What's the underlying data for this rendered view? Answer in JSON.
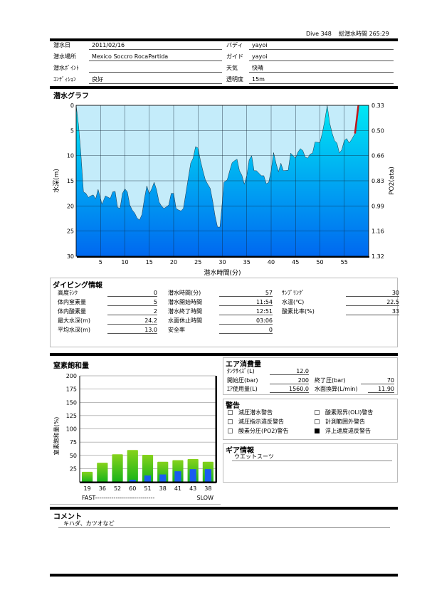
{
  "header": {
    "dive_label": "Dive 348",
    "total_label": "総潜水時間",
    "total_value": "265:29"
  },
  "info": {
    "left": [
      {
        "label": "潜水日",
        "value": "2011/02/16"
      },
      {
        "label": "潜水場所",
        "value": "Mexico Soccro  RocaPartida"
      },
      {
        "label": "潜水ﾎﾟｲﾝﾄ",
        "value": ""
      },
      {
        "label": "ｺﾝﾃﾞｨｼｮﾝ",
        "value": "良好"
      }
    ],
    "right": [
      {
        "label": "バディ",
        "value": "yayoi"
      },
      {
        "label": "ガイド",
        "value": "yayoi"
      },
      {
        "label": "天気",
        "value": "快晴"
      },
      {
        "label": "透明度",
        "value": "15m"
      }
    ]
  },
  "graph": {
    "title": "潜水グラフ"
  },
  "chart_data": [
    {
      "type": "area",
      "xlabel": "潜水時間(分)",
      "ylabel": "水深(m)",
      "y2label": "PO2(ata)",
      "xlim": [
        0,
        60
      ],
      "ylim": [
        0,
        30
      ],
      "y_inverted": true,
      "xticks": [
        5,
        10,
        15,
        20,
        25,
        30,
        35,
        40,
        45,
        50,
        55
      ],
      "yticks": [
        0,
        5,
        10,
        15,
        20,
        25,
        30
      ],
      "y2ticks": [
        "0.33",
        "0.50",
        "0.66",
        "0.83",
        "0.99",
        "1.16",
        "1.32"
      ],
      "grid": true,
      "colors": {
        "sky": "#c4ecfa",
        "fill_top": "#00e8f4",
        "fill_bottom": "#0068f0",
        "ascent_warning": "#c0161b"
      },
      "depth": [
        [
          0,
          0
        ],
        [
          0.5,
          4
        ],
        [
          1,
          10
        ],
        [
          1.5,
          17.2
        ],
        [
          2,
          17.5
        ],
        [
          2.5,
          18.3
        ],
        [
          3,
          18
        ],
        [
          3.5,
          17.8
        ],
        [
          4,
          18.6
        ],
        [
          4.5,
          16.7
        ],
        [
          5,
          18.5
        ],
        [
          5.3,
          19.7
        ],
        [
          6,
          18
        ],
        [
          7,
          18.5
        ],
        [
          7.5,
          17.2
        ],
        [
          8,
          17.1
        ],
        [
          8.5,
          20.3
        ],
        [
          9,
          20.5
        ],
        [
          9.5,
          17.5
        ],
        [
          10,
          16.6
        ],
        [
          10.5,
          17.2
        ],
        [
          11,
          19.8
        ],
        [
          11.5,
          20.8
        ],
        [
          12,
          21.4
        ],
        [
          12.5,
          22.4
        ],
        [
          13,
          22.8
        ],
        [
          13.5,
          21.7
        ],
        [
          14,
          18.6
        ],
        [
          14.5,
          16
        ],
        [
          15,
          17.6
        ],
        [
          15.5,
          16.6
        ],
        [
          16,
          15.3
        ],
        [
          16.5,
          16.8
        ],
        [
          17,
          19.2
        ],
        [
          17.5,
          20
        ],
        [
          18,
          20.5
        ],
        [
          18.5,
          20.2
        ],
        [
          19,
          19.8
        ],
        [
          19.5,
          17.5
        ],
        [
          20,
          17.5
        ],
        [
          20.5,
          20.5
        ],
        [
          21,
          20.8
        ],
        [
          21.5,
          21
        ],
        [
          22,
          20.5
        ],
        [
          22.5,
          17.5
        ],
        [
          23,
          14.5
        ],
        [
          23.5,
          11.5
        ],
        [
          24,
          10.5
        ],
        [
          24.5,
          8.2
        ],
        [
          25,
          8.5
        ],
        [
          25.5,
          11
        ],
        [
          26,
          13
        ],
        [
          26.5,
          14.8
        ],
        [
          27,
          15.7
        ],
        [
          27.5,
          16.5
        ],
        [
          28,
          19
        ],
        [
          28.5,
          22
        ],
        [
          29,
          24.2
        ],
        [
          29.5,
          24.2
        ],
        [
          30,
          19
        ],
        [
          30.3,
          15.3
        ],
        [
          31,
          14.8
        ],
        [
          31.5,
          13
        ],
        [
          32,
          11.4
        ],
        [
          32.5,
          11
        ],
        [
          33,
          10.7
        ],
        [
          33.5,
          13
        ],
        [
          34,
          13.9
        ],
        [
          34.5,
          15.7
        ],
        [
          35,
          14
        ],
        [
          35.5,
          10.8
        ],
        [
          36,
          10
        ],
        [
          36.5,
          13
        ],
        [
          37,
          13
        ],
        [
          37.5,
          13.5
        ],
        [
          38,
          14
        ],
        [
          38.5,
          14
        ],
        [
          39,
          15.6
        ],
        [
          39.5,
          15.3
        ],
        [
          40,
          13
        ],
        [
          40.5,
          9.4
        ],
        [
          41,
          11.5
        ],
        [
          41.5,
          13.2
        ],
        [
          42,
          11.5
        ],
        [
          42.5,
          13
        ],
        [
          43.5,
          12.9
        ],
        [
          44,
          9.5
        ],
        [
          44.5,
          10
        ],
        [
          45,
          10.5
        ],
        [
          45.5,
          9.3
        ],
        [
          46,
          8.6
        ],
        [
          46.5,
          9
        ],
        [
          47,
          10.3
        ],
        [
          47.5,
          10.5
        ],
        [
          48,
          9.7
        ],
        [
          48.5,
          9.5
        ],
        [
          49,
          7.3
        ],
        [
          50,
          7.4
        ],
        [
          50.5,
          5.5
        ],
        [
          51,
          3
        ],
        [
          51.5,
          0
        ],
        [
          52,
          3.5
        ],
        [
          52.5,
          5.5
        ],
        [
          53,
          7
        ],
        [
          53.5,
          7.5
        ],
        [
          54,
          9.5
        ],
        [
          54.5,
          8.8
        ],
        [
          55,
          7
        ],
        [
          55.5,
          6.6
        ],
        [
          56,
          7.5
        ],
        [
          56.5,
          6.8
        ],
        [
          57.2,
          5.6
        ],
        [
          57.9,
          0
        ]
      ],
      "ascent_warning_segment": [
        [
          57.2,
          5.6
        ],
        [
          57.9,
          0
        ]
      ]
    },
    {
      "type": "bar",
      "title": "窒素飽和量",
      "ylabel": "窒素飽和量(%)",
      "ylim": [
        0,
        200
      ],
      "yticks": [
        25,
        50,
        75,
        100,
        125,
        150,
        175,
        200
      ],
      "categories": [
        "19",
        "36",
        "52",
        "60",
        "51",
        "38",
        "41",
        "43",
        "38"
      ],
      "series": [
        {
          "values": [
            19,
            36,
            52,
            60,
            51,
            38,
            41,
            43,
            38
          ],
          "color": "#3cc21a"
        },
        {
          "values": [
            0,
            0,
            0,
            4,
            12,
            14,
            20,
            24,
            24
          ],
          "color": "#1a5cf0"
        }
      ],
      "xnote_left": "FAST",
      "xnote_right": "SLOW",
      "xnote_dashes": "-----------------------------"
    }
  ],
  "diving": {
    "title": "ダイビング情報",
    "col1": [
      {
        "label": "高度ﾗﾝｸ",
        "value": "0"
      },
      {
        "label": "体内窒素量",
        "value": "5"
      },
      {
        "label": "体内酸素量",
        "value": "2"
      },
      {
        "label": "最大水深(m)",
        "value": "24.2"
      },
      {
        "label": "平均水深(m)",
        "value": "13.0"
      }
    ],
    "col2": [
      {
        "label": "潜水時間(分)",
        "value": "57"
      },
      {
        "label": "潜水開始時間",
        "value": "11:54"
      },
      {
        "label": "潜水終了時間",
        "value": "12:51"
      },
      {
        "label": "水面休止時間",
        "value": "03:06"
      },
      {
        "label": "安全率",
        "value": "0"
      }
    ],
    "col3": [
      {
        "label": "ｻﾝﾌﾟﾘﾝｸﾞ",
        "value": "30"
      },
      {
        "label": "水温(℃)",
        "value": "22.5"
      },
      {
        "label": "酸素比率(%)",
        "value": "33"
      }
    ]
  },
  "air": {
    "title": "エア消費量",
    "tank_label": "ﾀﾝｸｻｲｽﾞ(L)",
    "tank": "12.0",
    "start_label": "開始圧(bar)",
    "start": "200",
    "end_label": "終了圧(bar)",
    "end": "70",
    "used_label": "ｴｱ使用量(L)",
    "used": "1560.0",
    "sac_label": "水面換算(L/min)",
    "sac": "11.90"
  },
  "warnings": {
    "title": "警告",
    "items": [
      {
        "label": "減圧潜水警告",
        "checked": false
      },
      {
        "label": "酸素限界(OLI)警告",
        "checked": false
      },
      {
        "label": "減圧指示違反警告",
        "checked": false
      },
      {
        "label": "計測範囲外警告",
        "checked": false
      },
      {
        "label": "酸素分圧(PO2)警告",
        "checked": false
      },
      {
        "label": "浮上速度違反警告",
        "checked": true
      }
    ]
  },
  "gear": {
    "title": "ギア情報",
    "value": "ウエットスーツ"
  },
  "comment": {
    "title": "コメント",
    "value": "キハダ、カツオなど"
  }
}
